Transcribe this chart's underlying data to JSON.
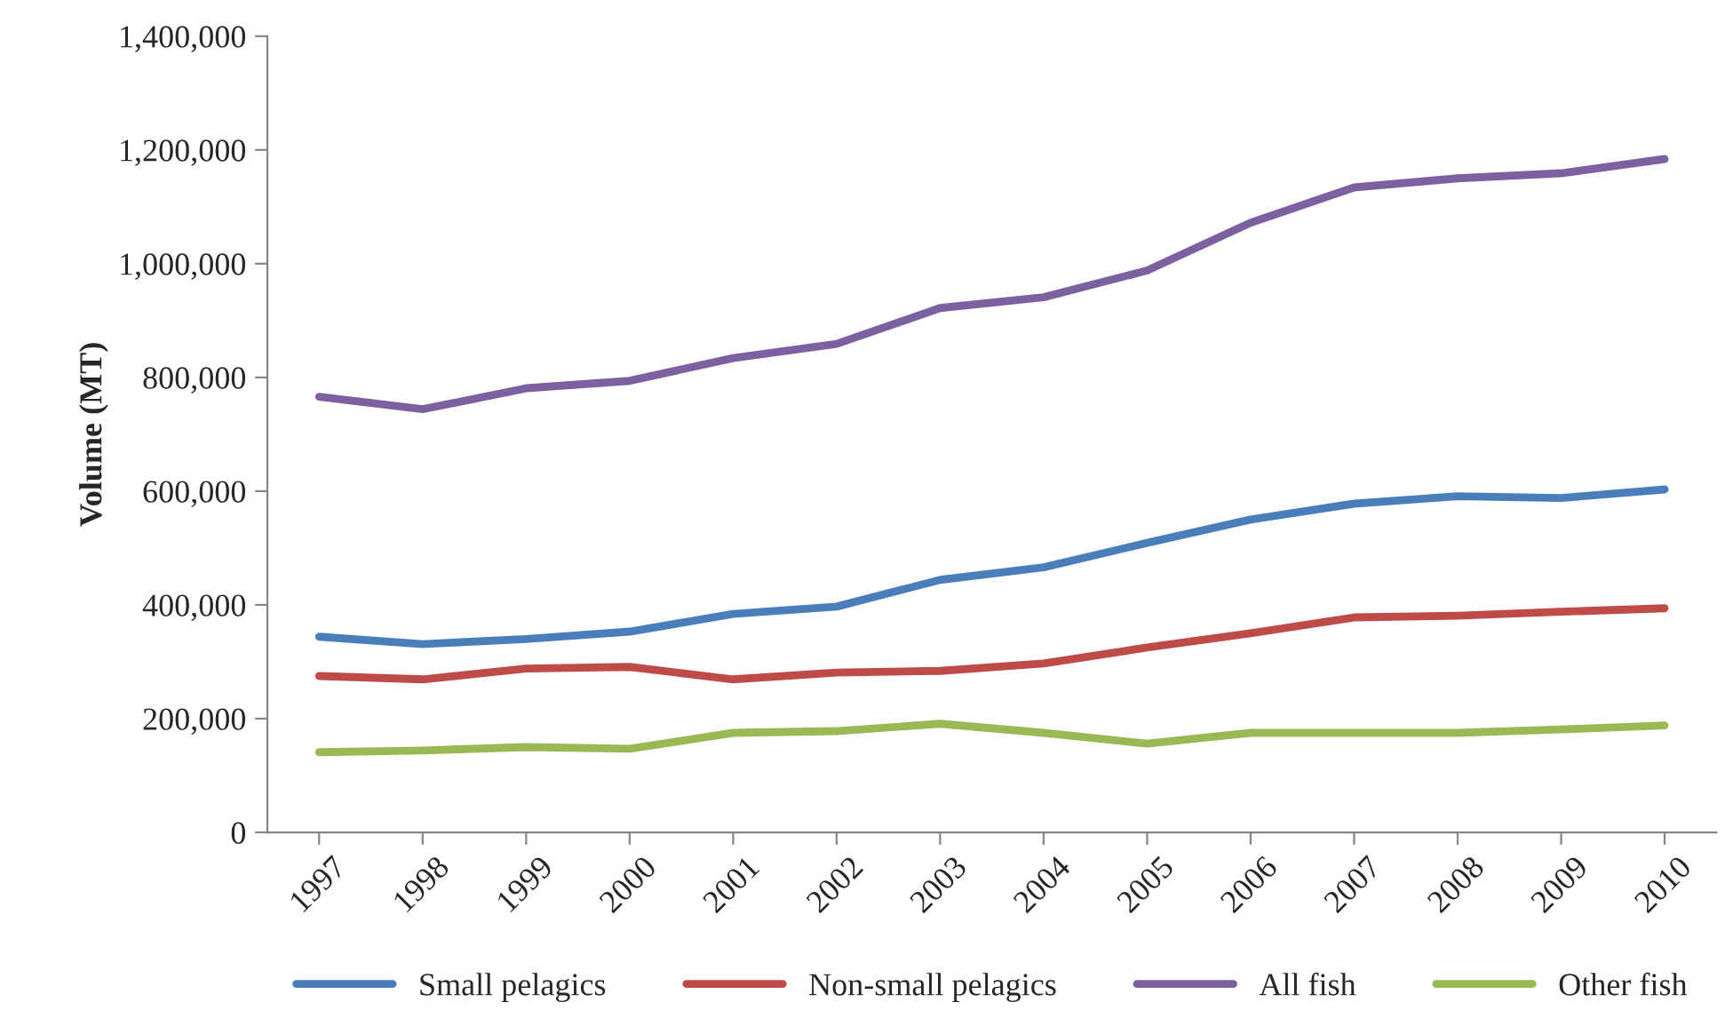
{
  "chart_data": {
    "type": "line",
    "ylabel": "Volume (MT)",
    "categories": [
      "1997",
      "1998",
      "1999",
      "2000",
      "2001",
      "2002",
      "2003",
      "2004",
      "2005",
      "2006",
      "2007",
      "2008",
      "2009",
      "2010"
    ],
    "series": [
      {
        "name": "Small pelagics",
        "color": "#4a7ebb",
        "values": [
          344000,
          331000,
          340000,
          353000,
          384000,
          397000,
          444000,
          466000,
          509000,
          550000,
          578000,
          591000,
          588000,
          603000
        ]
      },
      {
        "name": "Non-small pelagics",
        "color": "#be4b48",
        "values": [
          275000,
          269000,
          288000,
          291000,
          269000,
          281000,
          284000,
          297000,
          325000,
          350000,
          378000,
          381000,
          388000,
          394000
        ]
      },
      {
        "name": "All fish",
        "color": "#7d60a0",
        "values": [
          766000,
          744000,
          781000,
          794000,
          834000,
          859000,
          922000,
          941000,
          988000,
          1072000,
          1134000,
          1150000,
          1159000,
          1184000
        ]
      },
      {
        "name": "Other fish",
        "color": "#98b954",
        "values": [
          141000,
          144000,
          150000,
          147000,
          175000,
          178000,
          191000,
          175000,
          156000,
          175000,
          175000,
          175000,
          181000,
          188000
        ]
      }
    ],
    "ylim": [
      0,
      1400000
    ],
    "yticks": [
      {
        "value": 0,
        "label": "0"
      },
      {
        "value": 200000,
        "label": "200,000"
      },
      {
        "value": 400000,
        "label": "400,000"
      },
      {
        "value": 600000,
        "label": "600,000"
      },
      {
        "value": 800000,
        "label": "800,000"
      },
      {
        "value": 1000000,
        "label": "1,000,000"
      },
      {
        "value": 1200000,
        "label": "1,200,000"
      },
      {
        "value": 1400000,
        "label": "1,400,000"
      }
    ],
    "grid": false,
    "legend": "bottom",
    "marker": "none",
    "line_style": "solid"
  }
}
